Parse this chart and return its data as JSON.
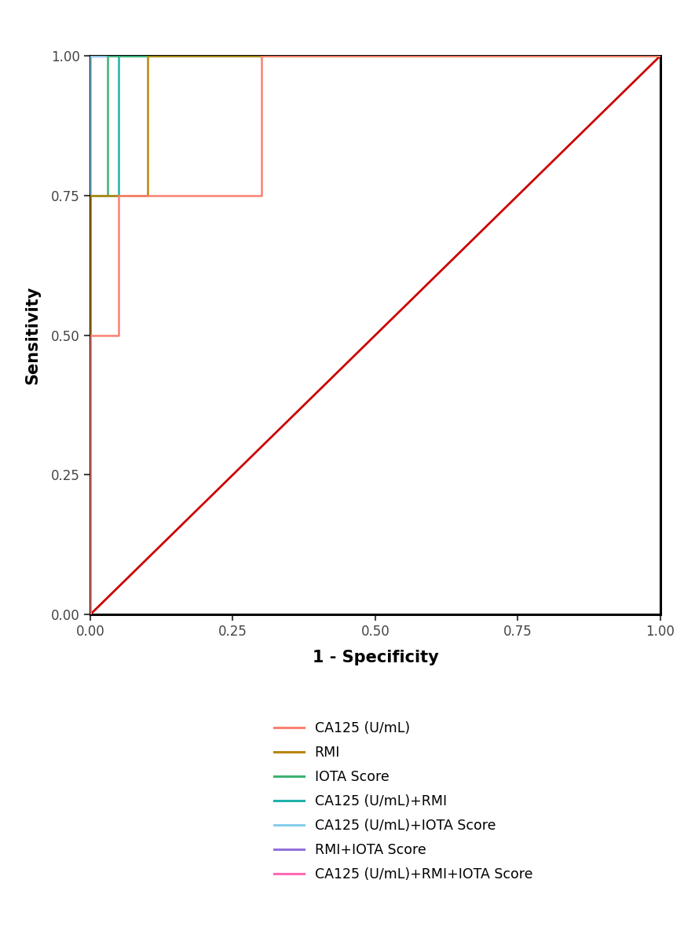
{
  "curves": {
    "CA125": {
      "x": [
        0,
        0,
        0.05,
        0.05,
        0.3,
        0.3,
        1.0
      ],
      "y": [
        0,
        0.5,
        0.5,
        0.75,
        0.75,
        1.0,
        1.0
      ],
      "color": "#FA8072",
      "lw": 1.8
    },
    "RMI": {
      "x": [
        0,
        0,
        0.1,
        0.1,
        1.0
      ],
      "y": [
        0,
        0.75,
        0.75,
        1.0,
        1.0
      ],
      "color": "#B8860B",
      "lw": 1.8
    },
    "IOTA_Score": {
      "x": [
        0,
        0,
        0.03,
        0.03,
        1.0
      ],
      "y": [
        0,
        0.75,
        0.75,
        1.0,
        1.0
      ],
      "color": "#3CB371",
      "lw": 1.8
    },
    "CA125_RMI": {
      "x": [
        0,
        0,
        0.05,
        0.05,
        1.0
      ],
      "y": [
        0,
        0.75,
        0.75,
        1.0,
        1.0
      ],
      "color": "#20B2AA",
      "lw": 1.8
    },
    "CA125_IOTA": {
      "x": [
        0,
        0,
        1.0
      ],
      "y": [
        0,
        1.0,
        1.0
      ],
      "color": "#87CEEB",
      "lw": 1.8
    },
    "RMI_IOTA": {
      "x": [
        0,
        0,
        1.0
      ],
      "y": [
        0,
        1.0,
        1.0
      ],
      "color": "#9370DB",
      "lw": 1.8
    },
    "CA125_RMI_IOTA": {
      "x": [
        0,
        0,
        1.0
      ],
      "y": [
        0,
        1.0,
        1.0
      ],
      "color": "#FF69B4",
      "lw": 2.0
    }
  },
  "reference": {
    "x": [
      0,
      1
    ],
    "y": [
      0,
      1
    ],
    "color": "#CC0000",
    "lw": 2.0
  },
  "xlabel": "1 - Specificity",
  "ylabel": "Sensitivity",
  "xlim": [
    0.0,
    1.0
  ],
  "ylim": [
    0.0,
    1.0
  ],
  "xticks": [
    0.0,
    0.25,
    0.5,
    0.75,
    1.0
  ],
  "yticks": [
    0.0,
    0.25,
    0.5,
    0.75,
    1.0
  ],
  "legend_labels": [
    "CA125 (U/mL)",
    "RMI",
    "IOTA Score",
    "CA125 (U/mL)+RMI",
    "CA125 (U/mL)+IOTA Score",
    "RMI+IOTA Score",
    "CA125 (U/mL)+RMI+IOTA Score"
  ],
  "legend_colors": [
    "#FA8072",
    "#B8860B",
    "#3CB371",
    "#20B2AA",
    "#87CEEB",
    "#9370DB",
    "#FF69B4"
  ],
  "background_color": "#ffffff",
  "axis_label_fontsize": 15,
  "tick_fontsize": 12,
  "legend_fontsize": 12.5
}
